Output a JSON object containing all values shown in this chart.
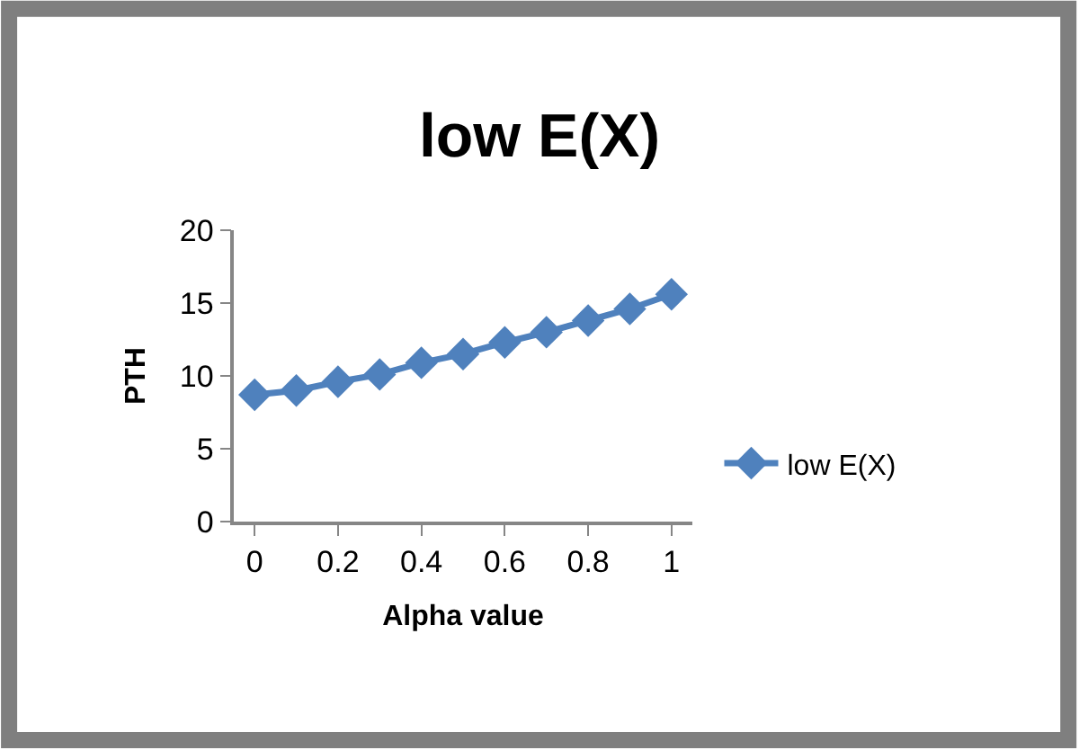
{
  "chart_data": {
    "type": "line",
    "title": "low E(X)",
    "xlabel": "Alpha value",
    "ylabel": "PTH",
    "x": [
      0,
      0.1,
      0.2,
      0.3,
      0.4,
      0.5,
      0.6,
      0.7,
      0.8,
      0.9,
      1
    ],
    "series": [
      {
        "name": "low E(X)",
        "color": "#4f81bd",
        "values": [
          8.7,
          9.0,
          9.6,
          10.1,
          10.9,
          11.5,
          12.3,
          13.0,
          13.8,
          14.6,
          15.6
        ]
      }
    ],
    "xlim": [
      -0.05,
      1.05
    ],
    "xticks": [
      0,
      0.2,
      0.4,
      0.6,
      0.8,
      1
    ],
    "ylim": [
      0,
      20
    ],
    "yticks": [
      0,
      5,
      10,
      15,
      20
    ],
    "legend": "right",
    "marker": "diamond",
    "line_style": "solid"
  }
}
